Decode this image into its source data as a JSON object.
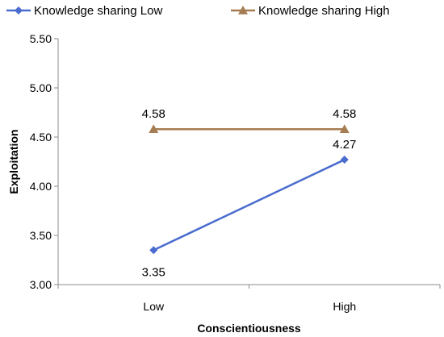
{
  "chart_data": {
    "type": "line",
    "categories": [
      "Low",
      "High"
    ],
    "series": [
      {
        "name": "Knowledge sharing Low",
        "values": [
          3.35,
          4.27
        ],
        "color": "#4a6ccf",
        "marker": "diamond"
      },
      {
        "name": "Knowledge sharing High",
        "values": [
          4.58,
          4.58
        ],
        "color": "#a67c52",
        "marker": "triangle"
      }
    ],
    "xlabel": "Conscientiousness",
    "ylabel": "Exploitation",
    "ylim": [
      3.0,
      5.5
    ],
    "yticks": [
      "3.00",
      "3.50",
      "4.00",
      "4.50",
      "5.00",
      "5.50"
    ],
    "grid": false,
    "legend_position": "top"
  }
}
